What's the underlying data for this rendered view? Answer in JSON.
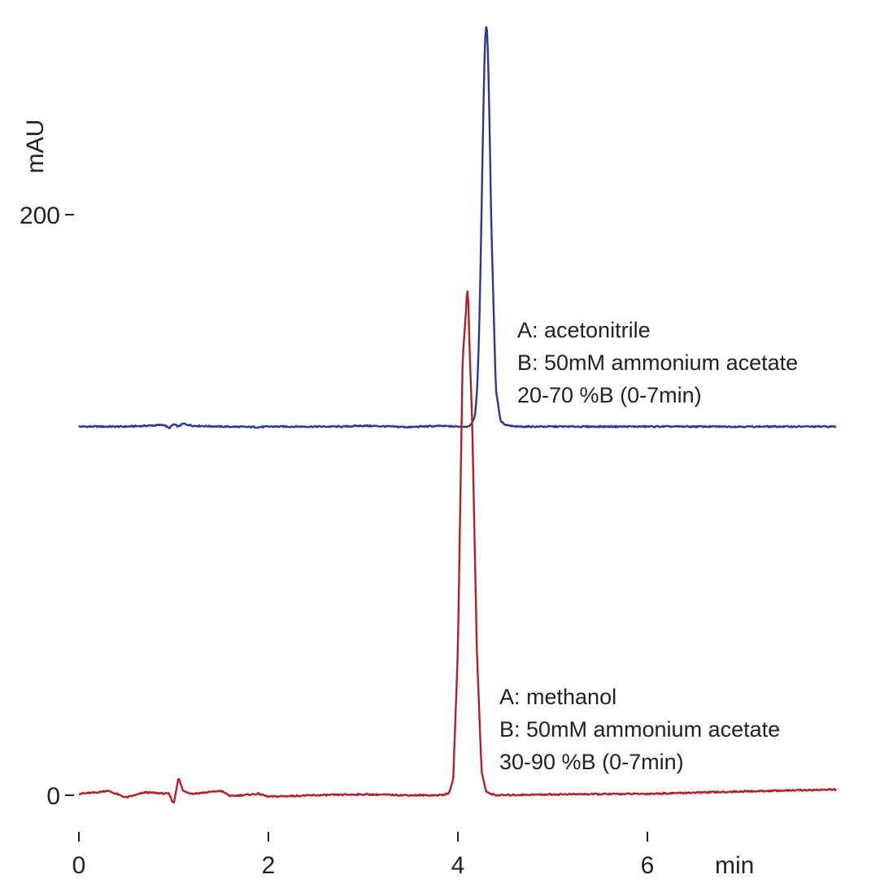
{
  "chart_data": {
    "type": "line",
    "xlabel": "min",
    "ylabel": "mAU",
    "xlim": [
      0,
      8
    ],
    "ylim": [
      0,
      300
    ],
    "x_ticks": [
      0,
      2,
      4,
      6
    ],
    "y_ticks": [
      0,
      200
    ],
    "grid": false,
    "legend": "none",
    "series": [
      {
        "color": "#2a3990",
        "baseline": 127,
        "peak": {
          "x": 4.3,
          "height": 138
        },
        "x": [
          0,
          0.5,
          0.8,
          0.9,
          0.95,
          1.0,
          1.05,
          1.1,
          1.2,
          1.5,
          1.9,
          2.0,
          2.5,
          2.8,
          3.0,
          3.5,
          3.6,
          3.8,
          4.0,
          4.1,
          4.15,
          4.2,
          4.25,
          4.3,
          4.35,
          4.4,
          4.45,
          4.5,
          4.6,
          5.0,
          6.0,
          7.0,
          8.0
        ],
        "values": [
          127,
          127,
          127.4,
          127.6,
          126.4,
          127.8,
          127,
          128,
          127.3,
          127,
          126.8,
          127,
          127,
          127,
          127.3,
          126.8,
          127,
          127.2,
          127,
          127,
          128,
          133,
          180,
          265,
          200,
          140,
          129,
          127.5,
          127,
          127,
          127,
          127,
          127
        ]
      },
      {
        "color": "#b0212a",
        "baseline": 0,
        "peak": {
          "x": 4.1,
          "height": 174
        },
        "x": [
          0,
          0.2,
          0.3,
          0.5,
          0.7,
          0.95,
          1.0,
          1.05,
          1.1,
          1.2,
          1.5,
          1.6,
          1.9,
          2.0,
          2.5,
          3.0,
          3.5,
          3.8,
          3.9,
          3.95,
          4.0,
          4.05,
          4.1,
          4.15,
          4.2,
          4.25,
          4.3,
          4.4,
          5.0,
          6.0,
          7.0,
          8.0
        ],
        "values": [
          0.5,
          1,
          1.6,
          -0.8,
          1,
          0.5,
          -3,
          6,
          1.5,
          0.5,
          1.5,
          -0.3,
          0.5,
          -0.5,
          0,
          0.3,
          0,
          0,
          0.5,
          5,
          50,
          150,
          174,
          130,
          50,
          8,
          1,
          0,
          0.3,
          0.5,
          1.3,
          2
        ]
      }
    ],
    "annotations": [
      {
        "lines": [
          "A: acetonitrile",
          "B: 50mM ammonium acetate",
          "20-70 %B (0-7min)"
        ]
      },
      {
        "lines": [
          "A: methanol",
          "B: 50mM ammonium acetate",
          "30-90 %B (0-7min)"
        ]
      }
    ]
  }
}
